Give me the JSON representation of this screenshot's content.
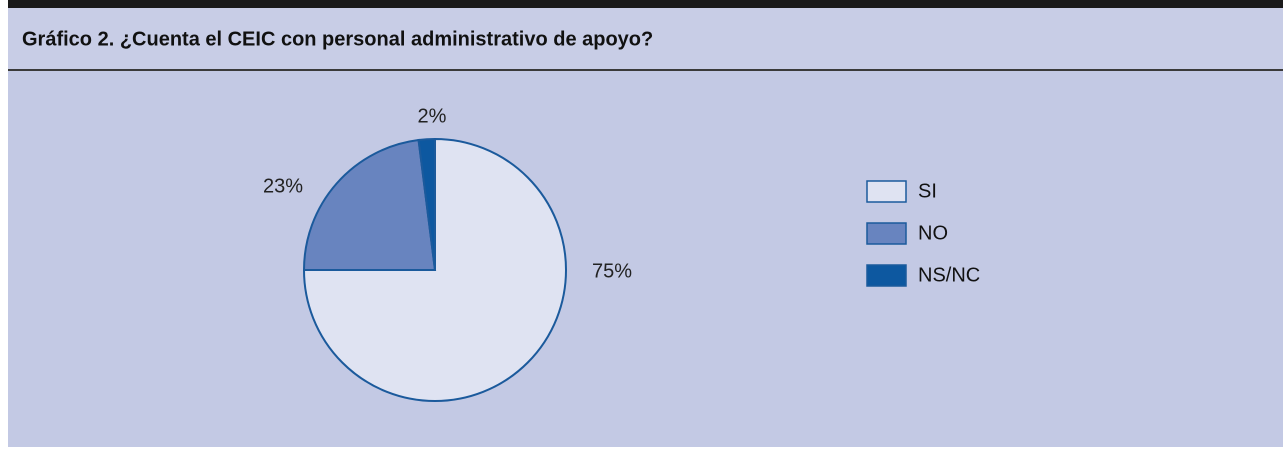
{
  "chart_data": {
    "type": "pie",
    "title": "Gráfico 2. ¿Cuenta el CEIC con personal administrativo de apoyo?",
    "categories": [
      "SI",
      "NO",
      "NS/NC"
    ],
    "values": [
      75,
      23,
      2
    ],
    "value_labels": [
      "75%",
      "23%",
      "2%"
    ],
    "colors": [
      "#dfe3f2",
      "#6884bf",
      "#0d58a0"
    ],
    "legend": "right"
  }
}
